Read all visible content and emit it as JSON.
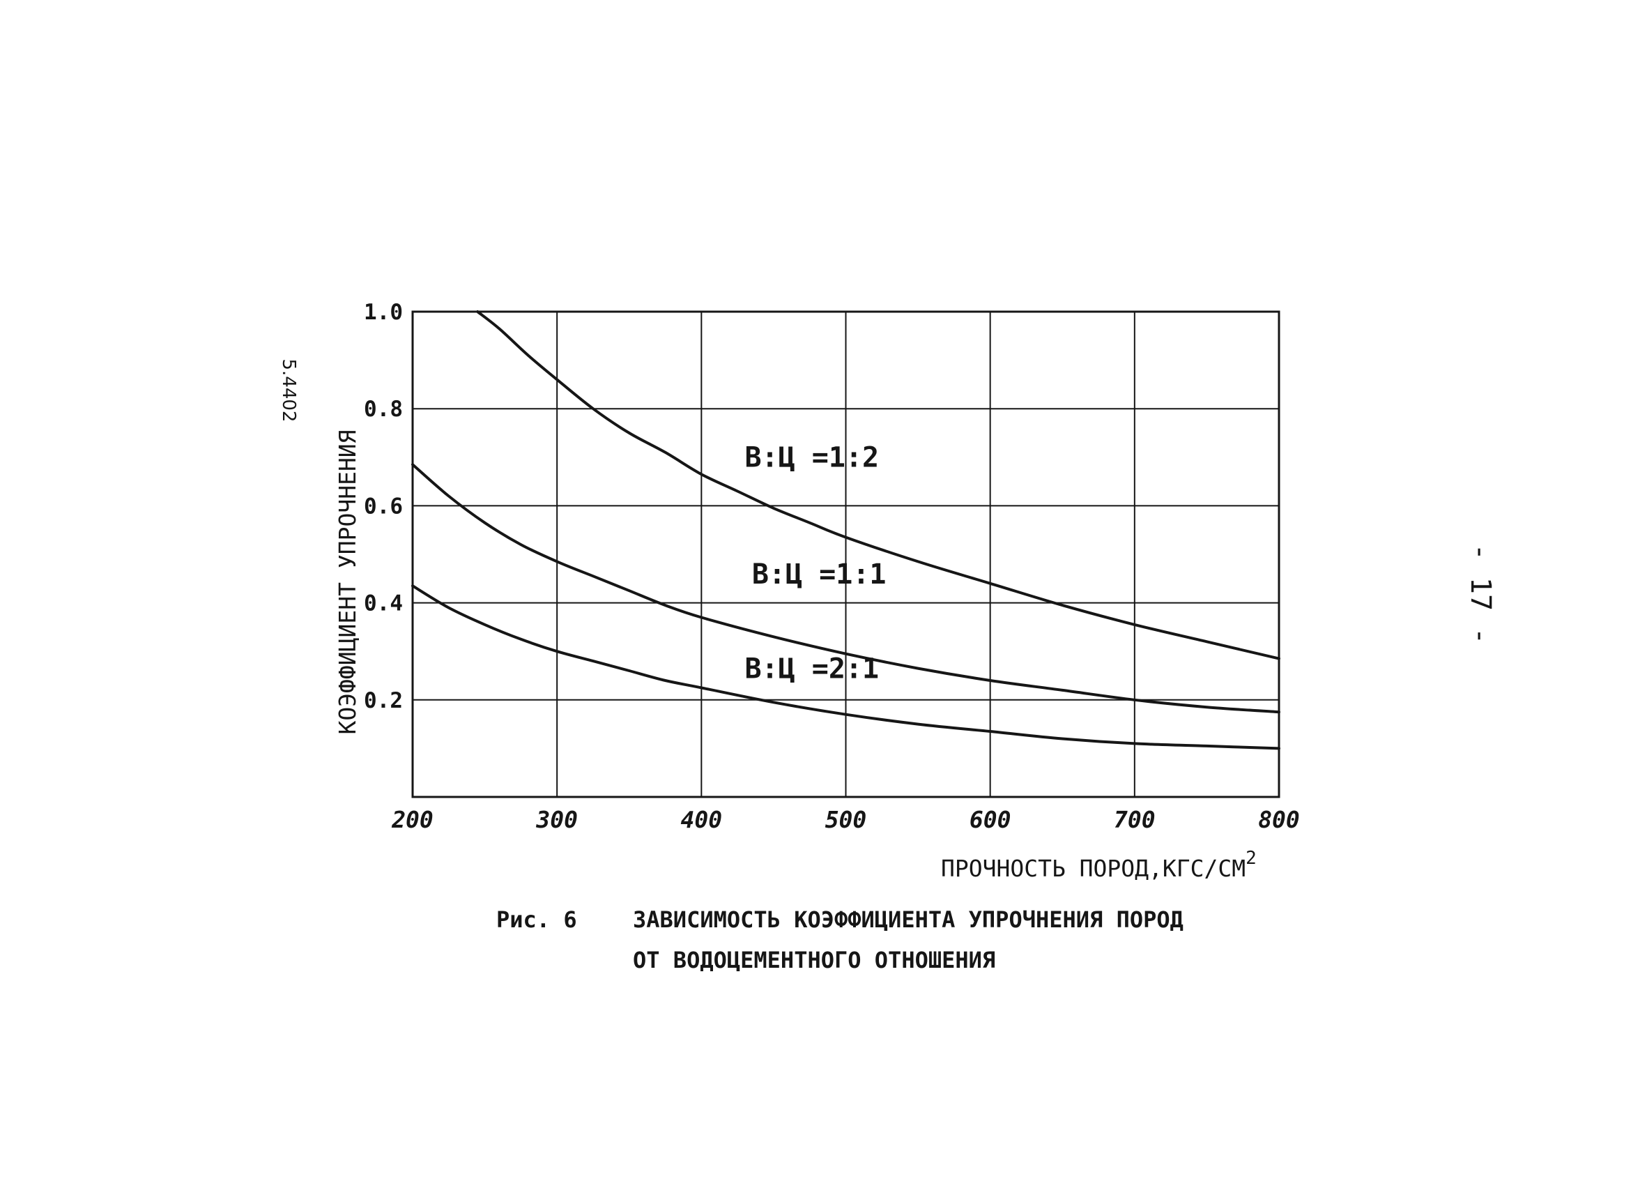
{
  "doc": {
    "side_code": "5.4402",
    "page_number": "- 17 -",
    "figure_label": "Рис. 6",
    "caption_line1": "ЗАВИСИМОСТЬ КОЭФФИЦИЕНТА УПРОЧНЕНИЯ ПОРОД",
    "caption_line2": "ОТ ВОДОЦЕМЕНТНОГО ОТНОШЕНИЯ"
  },
  "chart_data": {
    "type": "line",
    "xlabel": "ПРОЧНОСТЬ ПОРОД,КГС/СМ",
    "xlabel_sup": "2",
    "ylabel": "КОЭФФИЦИЕНТ УПРОЧНЕНИЯ",
    "xlim": [
      200,
      800
    ],
    "ylim": [
      0.0,
      1.0
    ],
    "x_ticks": [
      200,
      300,
      400,
      500,
      600,
      700,
      800
    ],
    "x_tick_labels": [
      "200",
      "300",
      "400",
      "500",
      "600",
      "700",
      "800"
    ],
    "y_ticks": [
      0.2,
      0.4,
      0.6,
      0.8,
      1.0
    ],
    "y_tick_labels": [
      "0.2",
      "0.4",
      "0.6",
      "0.8",
      "1.0"
    ],
    "grid": true,
    "line_color": "#161616",
    "series": [
      {
        "label": "В:Ц =1:2",
        "label_at": [
          430,
          0.68
        ],
        "x": [
          245,
          260,
          280,
          300,
          325,
          350,
          375,
          400,
          425,
          450,
          475,
          500,
          550,
          600,
          650,
          700,
          750,
          800
        ],
        "y": [
          1.0,
          0.965,
          0.91,
          0.86,
          0.8,
          0.75,
          0.71,
          0.665,
          0.63,
          0.595,
          0.565,
          0.535,
          0.485,
          0.44,
          0.395,
          0.355,
          0.32,
          0.285
        ]
      },
      {
        "label": "В:Ц =1:1",
        "label_at": [
          435,
          0.44
        ],
        "x": [
          200,
          225,
          250,
          275,
          300,
          325,
          350,
          375,
          400,
          450,
          500,
          550,
          600,
          650,
          700,
          750,
          800
        ],
        "y": [
          0.685,
          0.62,
          0.565,
          0.52,
          0.485,
          0.455,
          0.425,
          0.395,
          0.37,
          0.33,
          0.295,
          0.265,
          0.24,
          0.22,
          0.2,
          0.185,
          0.175
        ]
      },
      {
        "label": "В:Ц =2:1",
        "label_at": [
          430,
          0.245
        ],
        "x": [
          200,
          225,
          250,
          275,
          300,
          325,
          350,
          375,
          400,
          450,
          500,
          550,
          600,
          650,
          700,
          750,
          800
        ],
        "y": [
          0.435,
          0.39,
          0.355,
          0.325,
          0.3,
          0.28,
          0.26,
          0.24,
          0.225,
          0.195,
          0.17,
          0.15,
          0.135,
          0.12,
          0.11,
          0.105,
          0.1
        ]
      }
    ]
  }
}
